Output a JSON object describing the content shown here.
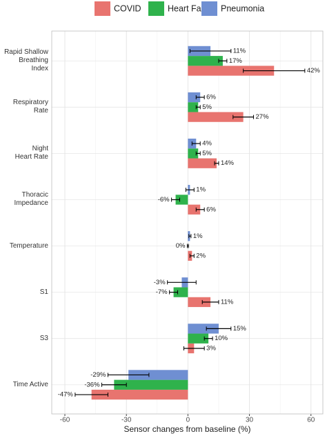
{
  "chart_data": {
    "type": "hbar",
    "xlabel": "Sensor changes from baseline (%)",
    "categories": [
      "Rapid Shallow\nBreathing Index",
      "Respiratory\nRate",
      "Night\nHeart Rate",
      "Thoracic\nImpedance",
      "Temperature",
      "S1",
      "S3",
      "Time Active"
    ],
    "series": [
      {
        "name": "COVID",
        "color": "#e8746f",
        "values": [
          42,
          27,
          14,
          6,
          2,
          11,
          3,
          -47
        ],
        "errors": [
          15,
          5,
          1,
          2,
          1,
          4,
          5,
          8
        ],
        "value_labels": [
          "42%",
          "27%",
          "14%",
          "6%",
          "2%",
          "11%",
          "3%",
          "-47%"
        ]
      },
      {
        "name": "Heart Failure",
        "color": "#2fb24c",
        "values": [
          17,
          5,
          5,
          -6,
          0,
          -7,
          10,
          -36
        ],
        "errors": [
          2,
          1,
          1,
          2,
          0.3,
          2,
          2,
          6
        ],
        "value_labels": [
          "17%",
          "5%",
          "5%",
          "-6%",
          "0%",
          "-7%",
          "10%",
          "-36%"
        ]
      },
      {
        "name": "Pneumonia",
        "color": "#6f8fd2",
        "values": [
          11,
          6,
          4,
          1,
          1,
          -3,
          15,
          -29
        ],
        "errors": [
          10,
          2,
          2,
          2,
          0.5,
          7,
          6,
          10
        ],
        "value_labels": [
          "11%",
          "6%",
          "4%",
          "1%",
          "1%",
          "-3%",
          "15%",
          "-29%"
        ]
      }
    ],
    "xlim": [
      -66.4,
      65.8
    ],
    "xticks": [
      -60,
      -30,
      0,
      30,
      60
    ],
    "xminor": [
      -45,
      -15,
      15,
      45
    ],
    "grid": true,
    "legend": "top"
  }
}
